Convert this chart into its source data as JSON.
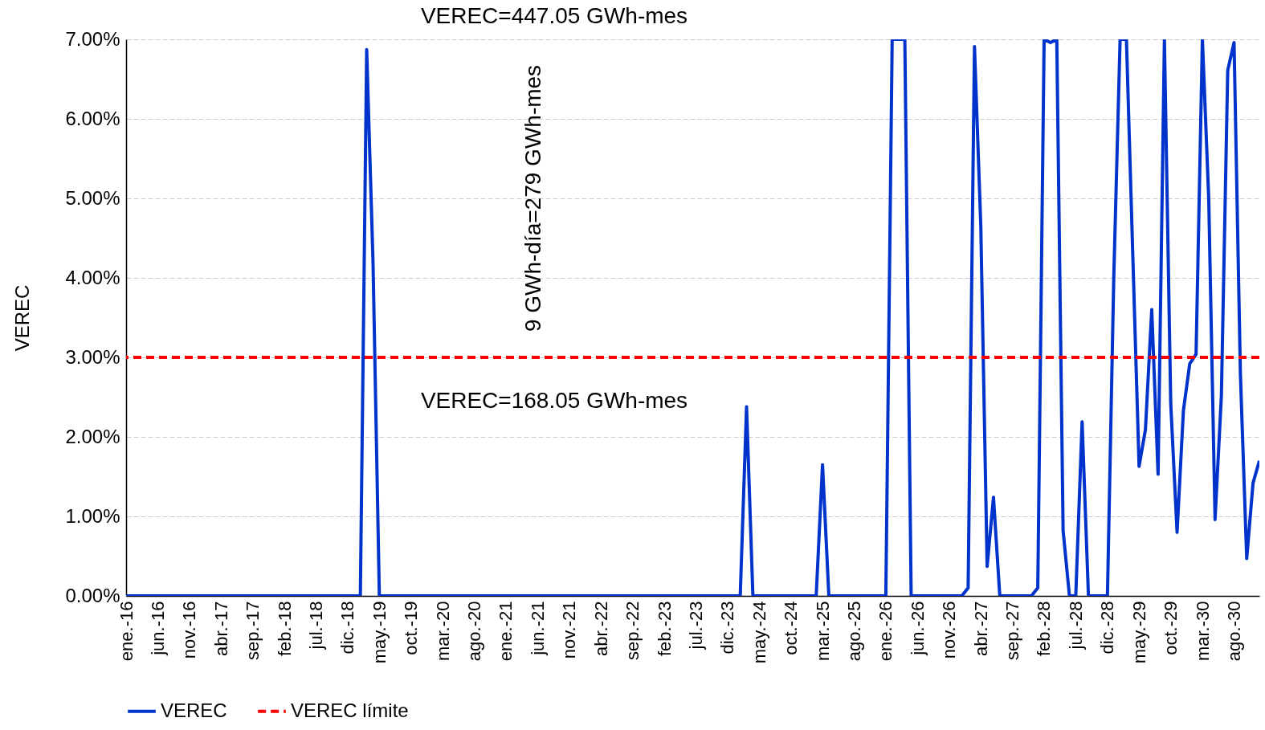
{
  "chart_data": {
    "type": "line",
    "ylabel": "VEREC",
    "categories": [
      "ene.-16",
      null,
      null,
      null,
      null,
      "jun.-16",
      null,
      null,
      null,
      null,
      "nov.-16",
      null,
      null,
      null,
      null,
      "abr.-17",
      null,
      null,
      null,
      null,
      "sep.-17",
      null,
      null,
      null,
      null,
      "feb.-18",
      null,
      null,
      null,
      null,
      "jul.-18",
      null,
      null,
      null,
      null,
      "dic.-18",
      null,
      null,
      null,
      null,
      "may.-19",
      null,
      null,
      null,
      null,
      "oct.-19",
      null,
      null,
      null,
      null,
      "mar.-20",
      null,
      null,
      null,
      null,
      "ago.-20",
      null,
      null,
      null,
      null,
      "ene.-21",
      null,
      null,
      null,
      null,
      "jun.-21",
      null,
      null,
      null,
      null,
      "nov.-21",
      null,
      null,
      null,
      null,
      "abr.-22",
      null,
      null,
      null,
      null,
      "sep.-22",
      null,
      null,
      null,
      null,
      "feb.-23",
      null,
      null,
      null,
      null,
      "jul.-23",
      null,
      null,
      null,
      null,
      "dic.-23",
      null,
      null,
      null,
      null,
      "may.-24",
      null,
      null,
      null,
      null,
      "oct.-24",
      null,
      null,
      null,
      null,
      "mar.-25",
      null,
      null,
      null,
      null,
      "ago.-25",
      null,
      null,
      null,
      null,
      "ene.-26",
      null,
      null,
      null,
      null,
      "jun.-26",
      null,
      null,
      null,
      null,
      "nov.-26",
      null,
      null,
      null,
      null,
      "abr.-27",
      null,
      null,
      null,
      null,
      "sep.-27",
      null,
      null,
      null,
      null,
      "feb.-28",
      null,
      null,
      null,
      null,
      "jul.-28",
      null,
      null,
      null,
      null,
      "dic.-28",
      null,
      null,
      null,
      null,
      "may.-29",
      null,
      null,
      null,
      null,
      "oct.-29",
      null,
      null,
      null,
      null,
      "mar.-30",
      null,
      null,
      null,
      null,
      "ago.-30",
      null,
      null,
      null,
      null
    ],
    "series": [
      {
        "name": "VEREC",
        "color": "#0033cc",
        "values": [
          0,
          0,
          0,
          0,
          0,
          0,
          0,
          0,
          0,
          0,
          0,
          0,
          0,
          0,
          0,
          0,
          0,
          0,
          0,
          0,
          0,
          0,
          0,
          0,
          0,
          0,
          0,
          0,
          0,
          0,
          0,
          0,
          0,
          0,
          0,
          0,
          0,
          0,
          6.87,
          4.2,
          0,
          0,
          0,
          0,
          0,
          0,
          0,
          0,
          0,
          0,
          0,
          0,
          0,
          0,
          0,
          0,
          0,
          0,
          0,
          0,
          0,
          0,
          0,
          0,
          0,
          0,
          0,
          0,
          0,
          0,
          0,
          0,
          0,
          0,
          0,
          0,
          0,
          0,
          0,
          0,
          0,
          0,
          0,
          0,
          0,
          0,
          0,
          0,
          0,
          0,
          0,
          0,
          0,
          0,
          0,
          0,
          0,
          0,
          2.38,
          0,
          0,
          0,
          0,
          0,
          0,
          0,
          0,
          0,
          0,
          0,
          1.65,
          0,
          0,
          0,
          0,
          0,
          0,
          0,
          0,
          0,
          0,
          7,
          7,
          7,
          0,
          0,
          0,
          0,
          0,
          0,
          0,
          0,
          0,
          0.1,
          6.91,
          4.65,
          0.37,
          1.24,
          0,
          0,
          0,
          0,
          0,
          0,
          0.1,
          7,
          6.96,
          7,
          0.82,
          0,
          0,
          2.19,
          0,
          0,
          0,
          0,
          4.0,
          7,
          7,
          4.3,
          1.63,
          2.09,
          3.6,
          1.53,
          7,
          2.42,
          0.8,
          2.33,
          2.92,
          3.04,
          7,
          5.0,
          0.96,
          2.52,
          6.61,
          6.96,
          2.8,
          0.47,
          1.42,
          1.7
        ]
      }
    ],
    "ylim": [
      0,
      7
    ],
    "yticks": [
      {
        "value": 0,
        "label": "0.00%"
      },
      {
        "value": 1,
        "label": "1.00%"
      },
      {
        "value": 2,
        "label": "2.00%"
      },
      {
        "value": 3,
        "label": "3.00%"
      },
      {
        "value": 4,
        "label": "4.00%"
      },
      {
        "value": 5,
        "label": "5.00%"
      },
      {
        "value": 6,
        "label": "6.00%"
      },
      {
        "value": 7,
        "label": "7.00%"
      }
    ],
    "grid": "y",
    "legend": "bottom",
    "ref_lines": [
      {
        "axis": "y",
        "value": 3,
        "label": "VEREC límite",
        "color": "#ff0000",
        "line_style": "dashed"
      }
    ],
    "annotations": [
      "VEREC=447.05 GWh-mes",
      "VEREC=168.05 GWh-mes",
      "9 GWh-día=279 GWh-mes"
    ]
  }
}
